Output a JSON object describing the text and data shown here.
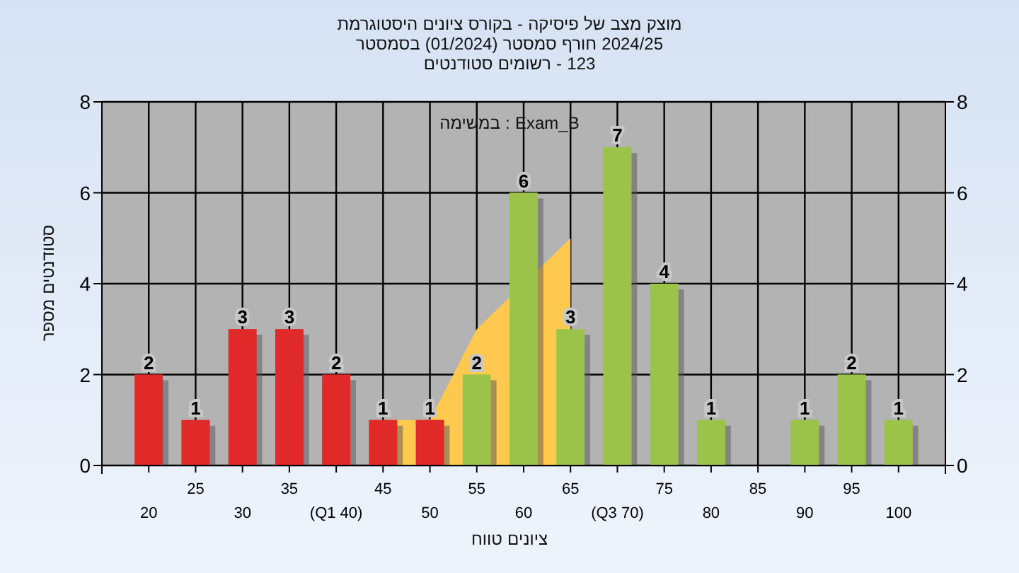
{
  "chart_data": {
    "type": "bar",
    "title": "היסטוגרמת ציונים בקורס - פיסיקה של מצב מוצק",
    "subtitle": "בסמסטר (01/2024) סמסטר חורף 2024/25\nסטודנטים רשומים - 123",
    "xlabel": "טווח ציונים",
    "ylabel": "מספר סטודנטים",
    "annotations": [
      "במשימה : Exam_B"
    ],
    "categories": [
      "20",
      "25",
      "30",
      "35",
      "(Q1 40)",
      "45",
      "50",
      "55",
      "60",
      "65",
      "(Q3 70)",
      "75",
      "80",
      "85",
      "90",
      "95",
      "100"
    ],
    "series": [
      {
        "type": "area",
        "color": "#ffc94f",
        "values": [
          null,
          null,
          null,
          null,
          null,
          1,
          1,
          3,
          null,
          5,
          null,
          null,
          null,
          null,
          null,
          null,
          null
        ]
      },
      {
        "type": "bar",
        "data_labels": true,
        "colors": [
          "#e02a2a",
          "#e02a2a",
          "#e02a2a",
          "#e02a2a",
          "#e02a2a",
          "#e02a2a",
          "#e02a2a",
          "#9bc34a",
          "#9bc34a",
          "#9bc34a",
          "#9bc34a",
          "#9bc34a",
          "#9bc34a",
          null,
          "#9bc34a",
          "#9bc34a",
          "#9bc34a"
        ],
        "values": [
          2,
          1,
          3,
          3,
          2,
          1,
          1,
          2,
          6,
          3,
          7,
          4,
          1,
          null,
          1,
          2,
          1
        ]
      }
    ],
    "ylim": [
      0,
      8
    ],
    "yticks": [
      0,
      2,
      4,
      6,
      8
    ],
    "y2lim": [
      0,
      8
    ],
    "y2ticks": [
      0,
      2,
      4,
      6,
      8
    ],
    "grid": true
  }
}
